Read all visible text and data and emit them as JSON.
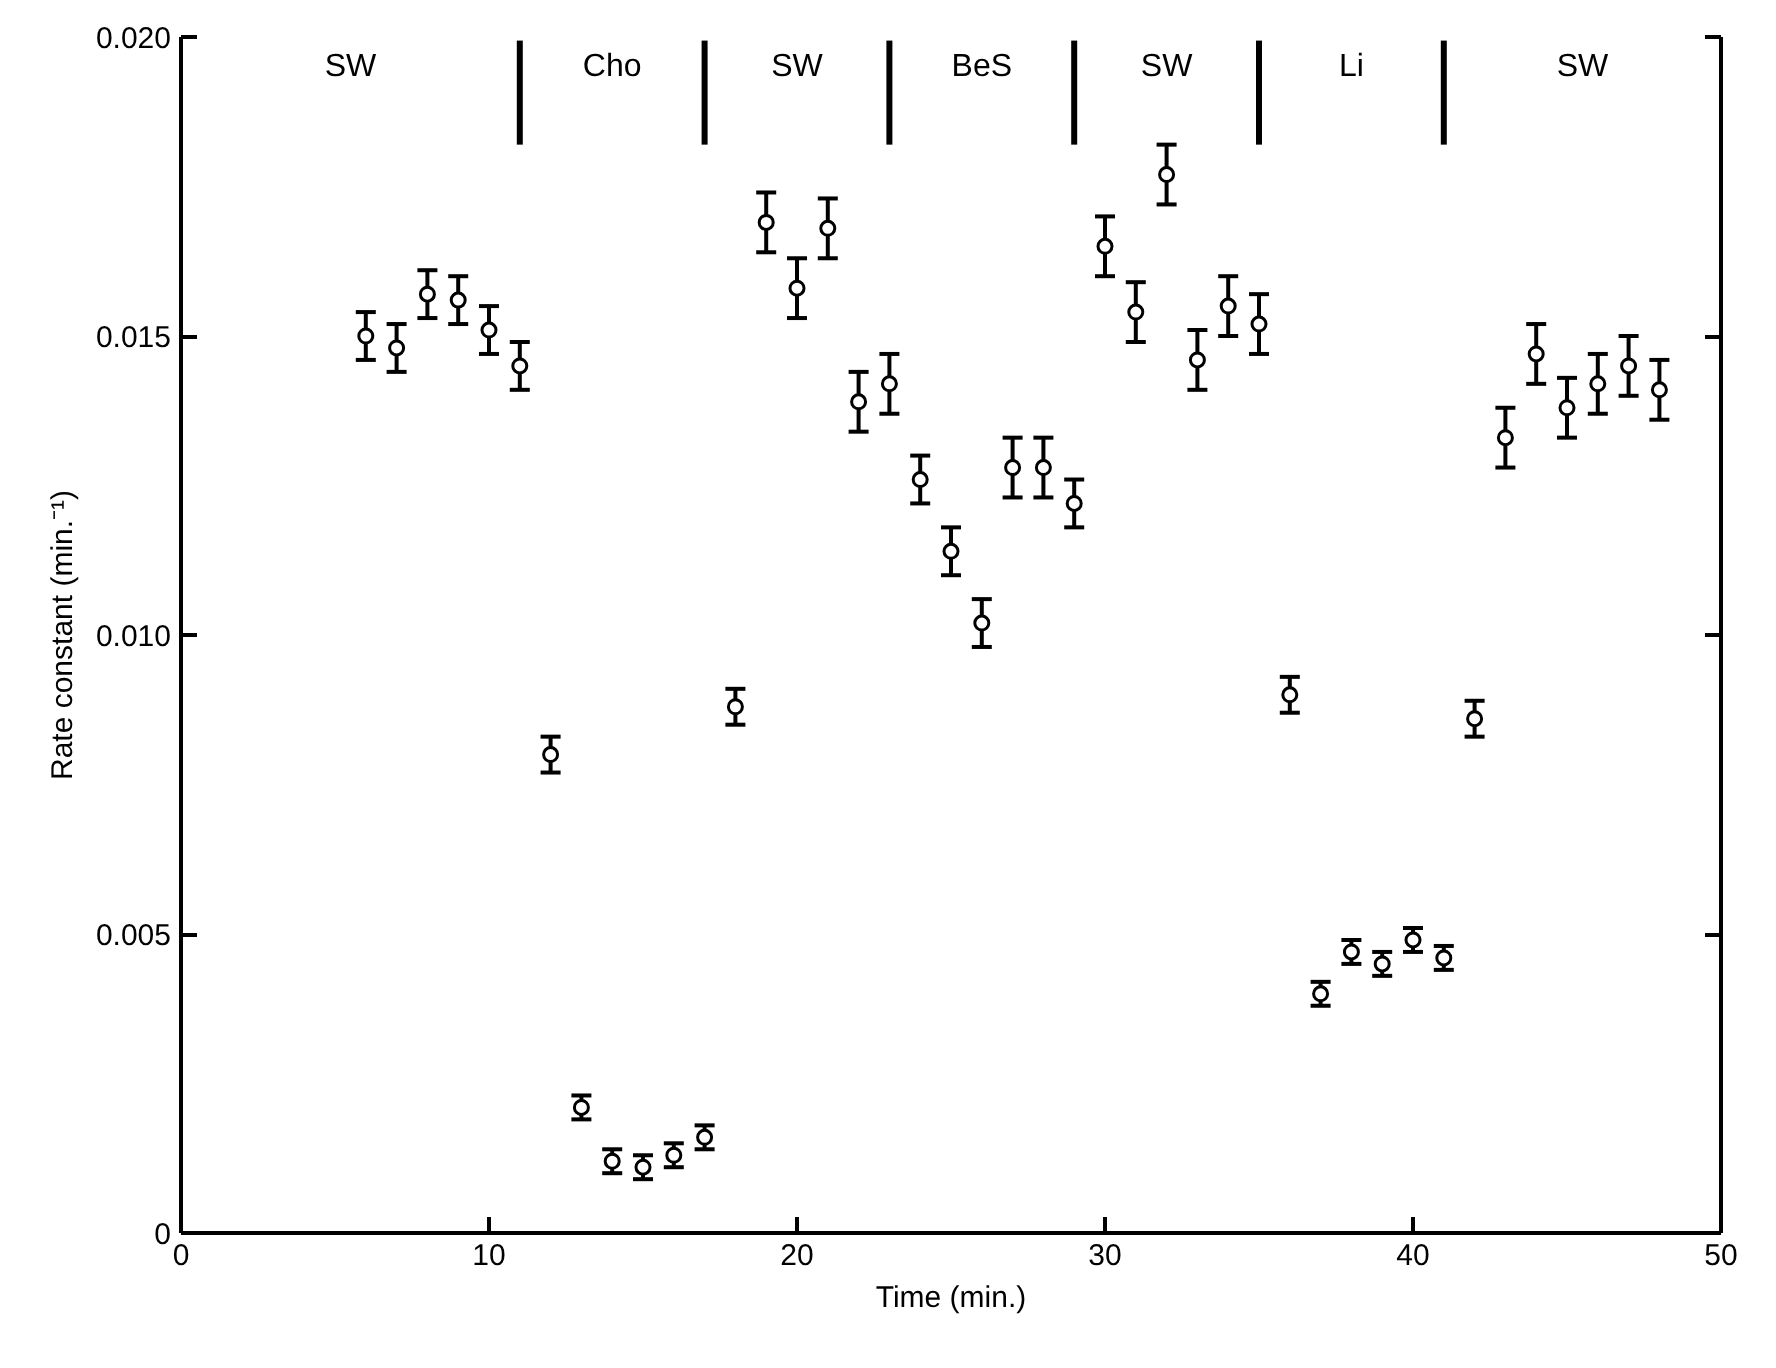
{
  "chart_data": {
    "type": "scatter",
    "xlabel": "Time (min.)",
    "ylabel": "Rate constant (min.⁻¹)",
    "x": [
      6,
      7,
      8,
      9,
      10,
      11,
      12,
      13,
      14,
      15,
      16,
      17,
      18,
      19,
      20,
      21,
      22,
      23,
      24,
      25,
      26,
      27,
      28,
      29,
      30,
      31,
      32,
      33,
      34,
      35,
      36,
      37,
      38,
      39,
      40,
      41,
      42,
      43,
      44,
      45,
      46,
      47,
      48
    ],
    "series": [
      {
        "color": "#000000",
        "values": [
          0.015,
          0.0148,
          0.0157,
          0.0156,
          0.0151,
          0.0145,
          0.008,
          0.0021,
          0.0012,
          0.0011,
          0.0013,
          0.0016,
          0.0088,
          0.0169,
          0.0158,
          0.0168,
          0.0139,
          0.0142,
          0.0126,
          0.0114,
          0.0102,
          0.0128,
          0.0128,
          0.0122,
          0.0165,
          0.0154,
          0.0177,
          0.0146,
          0.0155,
          0.0152,
          0.009,
          0.004,
          0.0047,
          0.0045,
          0.0049,
          0.0046,
          0.0086,
          0.0133,
          0.0147,
          0.0138,
          0.0142,
          0.0145,
          0.0141
        ],
        "errors": [
          0.0004,
          0.0004,
          0.0004,
          0.0004,
          0.0004,
          0.0004,
          0.0003,
          0.0002,
          0.0002,
          0.0002,
          0.0002,
          0.0002,
          0.0003,
          0.0005,
          0.0005,
          0.0005,
          0.0005,
          0.0005,
          0.0004,
          0.0004,
          0.0004,
          0.0005,
          0.0005,
          0.0004,
          0.0005,
          0.0005,
          0.0005,
          0.0005,
          0.0005,
          0.0005,
          0.0003,
          0.0002,
          0.0002,
          0.0002,
          0.0002,
          0.0002,
          0.0003,
          0.0005,
          0.0005,
          0.0005,
          0.0005,
          0.0005,
          0.0005
        ]
      }
    ],
    "marker": "circle",
    "grid": false,
    "xlim": [
      0,
      50
    ],
    "xticks": [
      0,
      10,
      20,
      30,
      40,
      50
    ],
    "ylim": [
      0,
      0.02
    ],
    "yticks": [
      0,
      0.005,
      {
        "value": 0.01,
        "label": "0.010"
      },
      0.015,
      {
        "value": 0.02,
        "label": "0.020"
      }
    ],
    "ref_lines": [
      {
        "axis": "x",
        "value": 11,
        "label": null
      },
      {
        "axis": "x",
        "value": 17,
        "label": null
      },
      {
        "axis": "x",
        "value": 23,
        "label": null
      },
      {
        "axis": "x",
        "value": 29,
        "label": null
      },
      {
        "axis": "x",
        "value": 35,
        "label": null
      },
      {
        "axis": "x",
        "value": 41,
        "label": null
      }
    ],
    "annotations": [
      "SW",
      "Cho",
      "SW",
      "BeS",
      "SW",
      "Li",
      "SW"
    ]
  }
}
